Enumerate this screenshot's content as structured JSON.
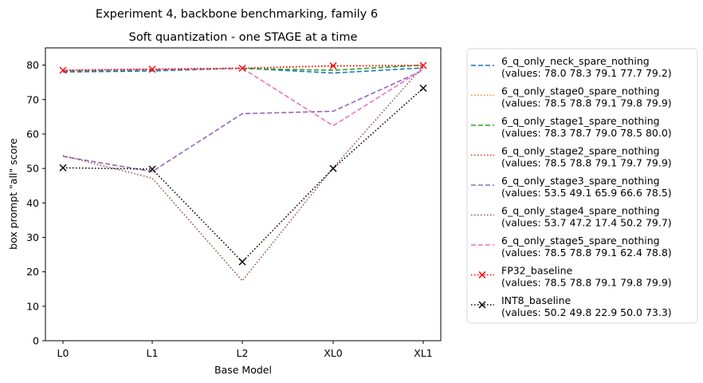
{
  "chart_data": {
    "type": "line",
    "suptitle": "Experiment 4, backbone benchmarking, family 6",
    "title": "Soft quantization - one STAGE at a time",
    "xlabel": "Base Model",
    "ylabel": "box prompt \"all\" score",
    "categories": [
      "L0",
      "L1",
      "L2",
      "XL0",
      "XL1"
    ],
    "ylim": [
      0,
      85
    ],
    "yticks": [
      0,
      10,
      20,
      30,
      40,
      50,
      60,
      70,
      80
    ],
    "grid": false,
    "legend_position": "outside-right",
    "series": [
      {
        "name": "6_q_only_neck_spare_nothing",
        "legend_values": "(values: 78.0 78.3 79.1 77.7 79.2)",
        "values": [
          78.0,
          78.3,
          79.1,
          77.7,
          79.2
        ],
        "color": "#1f77b4",
        "style": "dashed",
        "marker": "none"
      },
      {
        "name": "6_q_only_stage0_spare_nothing",
        "legend_values": "(values: 78.5 78.8 79.1 79.8 79.9)",
        "values": [
          78.5,
          78.8,
          79.1,
          79.8,
          79.9
        ],
        "color": "#ff7f0e",
        "style": "dotted",
        "marker": "none"
      },
      {
        "name": "6_q_only_stage1_spare_nothing",
        "legend_values": "(values: 78.3 78.7 79.0 78.5 80.0)",
        "values": [
          78.3,
          78.7,
          79.0,
          78.5,
          80.0
        ],
        "color": "#2ca02c",
        "style": "dashed",
        "marker": "none"
      },
      {
        "name": "6_q_only_stage2_spare_nothing",
        "legend_values": "(values: 78.5 78.8 79.1 79.7 79.9)",
        "values": [
          78.5,
          78.8,
          79.1,
          79.7,
          79.9
        ],
        "color": "#d62728",
        "style": "dotted",
        "marker": "none"
      },
      {
        "name": "6_q_only_stage3_spare_nothing",
        "legend_values": "(values: 53.5 49.1 65.9 66.6 78.5)",
        "values": [
          53.5,
          49.1,
          65.9,
          66.6,
          78.5
        ],
        "color": "#9467bd",
        "style": "dashed",
        "marker": "none"
      },
      {
        "name": "6_q_only_stage4_spare_nothing",
        "legend_values": "(values: 53.7 47.2 17.4 50.2 79.7)",
        "values": [
          53.7,
          47.2,
          17.4,
          50.2,
          79.7
        ],
        "color": "#8c564b",
        "style": "dotted",
        "marker": "none"
      },
      {
        "name": "6_q_only_stage5_spare_nothing",
        "legend_values": "(values: 78.5 78.8 79.1 62.4 78.8)",
        "values": [
          78.5,
          78.8,
          79.1,
          62.4,
          78.8
        ],
        "color": "#e377c2",
        "style": "dashed",
        "marker": "none"
      },
      {
        "name": "FP32_baseline",
        "legend_values": "(values: 78.5 78.8 79.1 79.8 79.9)",
        "values": [
          78.5,
          78.8,
          79.1,
          79.8,
          79.9
        ],
        "color": "#ff0000",
        "style": "dotted",
        "marker": "x"
      },
      {
        "name": "INT8_baseline",
        "legend_values": "(values: 50.2 49.8 22.9 50.0 73.3)",
        "values": [
          50.2,
          49.8,
          22.9,
          50.0,
          73.3
        ],
        "color": "#000000",
        "style": "dotted",
        "marker": "x"
      }
    ]
  }
}
